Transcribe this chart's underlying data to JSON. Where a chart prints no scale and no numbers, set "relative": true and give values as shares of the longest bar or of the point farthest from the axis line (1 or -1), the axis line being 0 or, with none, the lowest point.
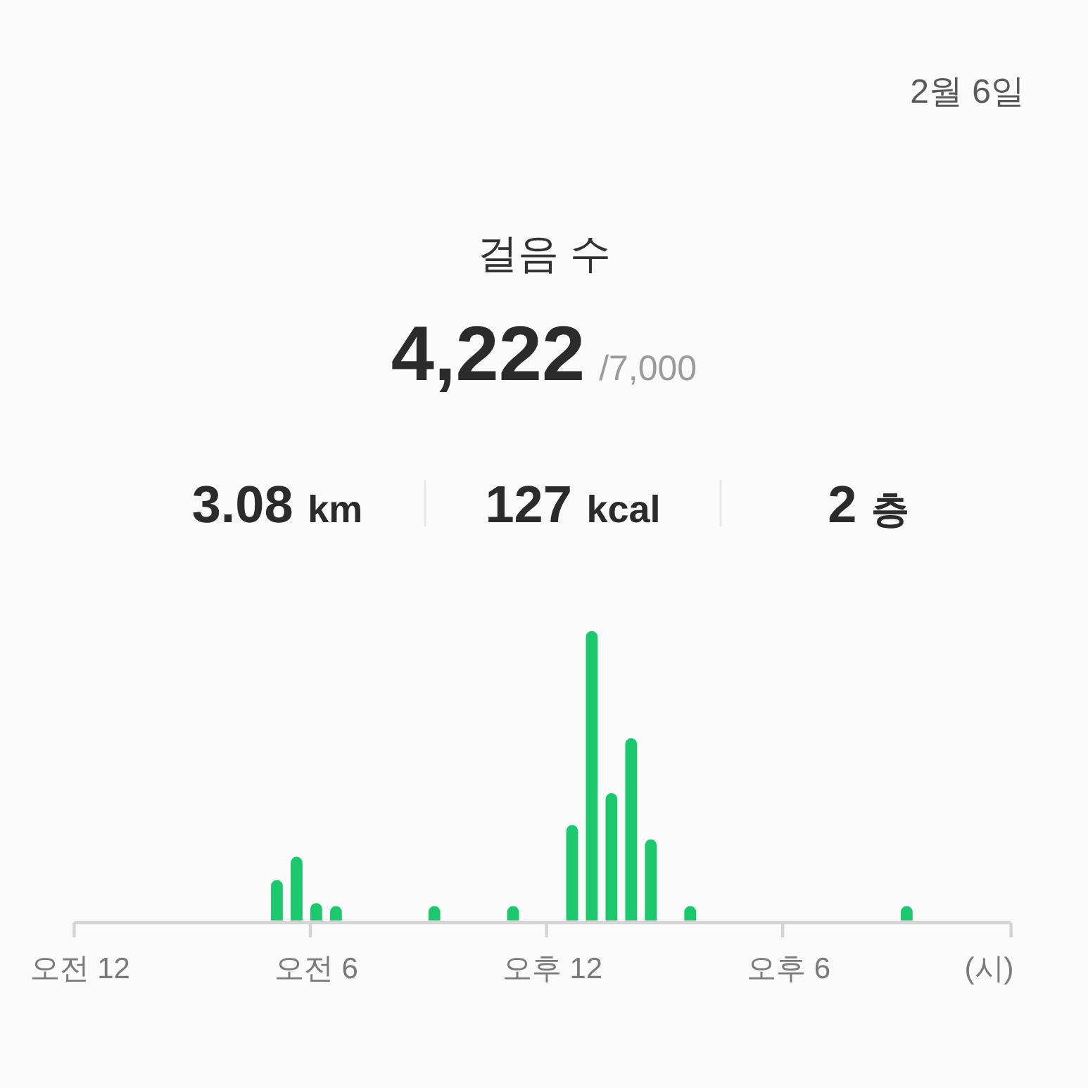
{
  "chart_data": {
    "type": "bar",
    "title": "걸음 수",
    "subtitle": "2월 6일",
    "annotations": [
      "4,222",
      "/7,000",
      "3.08 km",
      "127 kcal",
      "2 층"
    ],
    "xlabel": "(시)",
    "relative": true,
    "color": "#1cc86c",
    "categories": [
      "오전 12",
      null,
      null,
      null,
      null,
      null,
      null,
      null,
      null,
      null,
      null,
      null,
      "오전 6",
      null,
      null,
      null,
      null,
      null,
      null,
      null,
      null,
      null,
      null,
      null,
      "오후 12",
      null,
      null,
      null,
      null,
      null,
      null,
      null,
      null,
      null,
      null,
      null,
      "오후 6",
      null,
      null,
      null,
      null,
      null,
      null,
      null,
      null,
      null,
      null,
      null
    ],
    "values": [
      null,
      null,
      null,
      null,
      null,
      null,
      null,
      null,
      null,
      null,
      0.14,
      0.22,
      0.06,
      0.05,
      null,
      null,
      null,
      null,
      0.05,
      null,
      null,
      null,
      0.05,
      null,
      null,
      0.33,
      1,
      0.44,
      0.63,
      0.28,
      null,
      0.05,
      null,
      null,
      null,
      null,
      null,
      null,
      null,
      null,
      null,
      null,
      0.05,
      null,
      null,
      null,
      null,
      null
    ]
  }
}
